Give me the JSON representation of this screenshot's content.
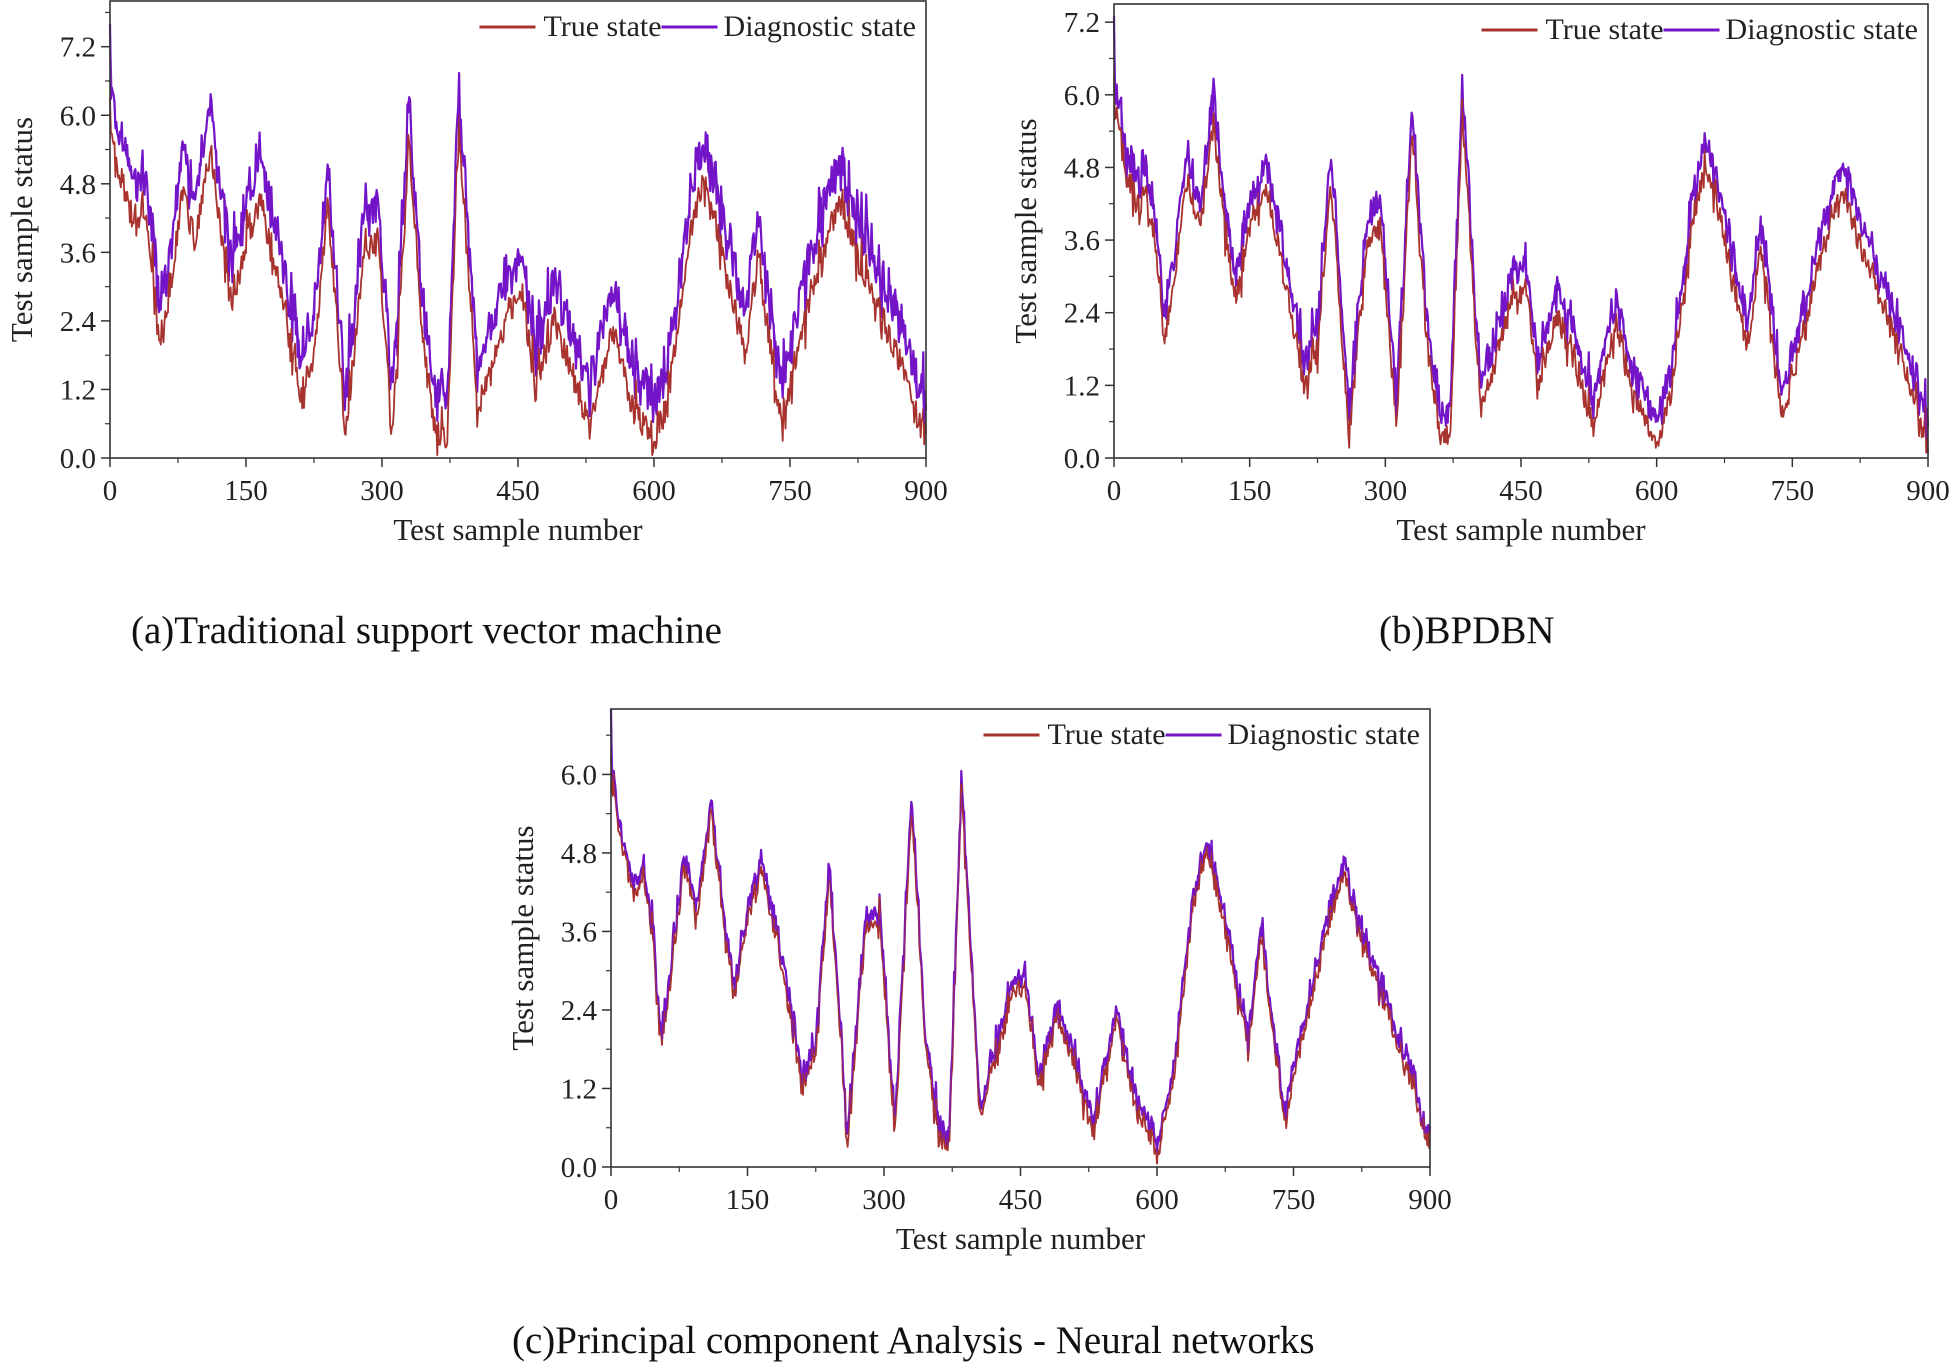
{
  "colors": {
    "true_state": "#a8322d",
    "diagnostic_state": "#7414c8",
    "axis": "#333333"
  },
  "chart_data": [
    {
      "id": "a",
      "type": "line",
      "title": "(a)Traditional support vector machine",
      "xlabel": "Test sample number",
      "ylabel": "Test sample status",
      "xlim": [
        0,
        900
      ],
      "ylim": [
        0,
        8.0
      ],
      "xticks": [
        "0",
        "150",
        "300",
        "450",
        "600",
        "750",
        "900"
      ],
      "yticks": [
        "0.0",
        "1.2",
        "2.4",
        "3.6",
        "4.8",
        "6.0",
        "7.2"
      ],
      "legend": {
        "position": "top-right",
        "entries": [
          "True state",
          "Diagnostic state"
        ]
      },
      "diagnostic_offset": 0.7,
      "noise_amplitude": 0.5
    },
    {
      "id": "b",
      "type": "line",
      "title": "(b)BPDBN",
      "xlabel": "Test sample number",
      "ylabel": "Test sample status",
      "xlim": [
        0,
        900
      ],
      "ylim": [
        0,
        7.5
      ],
      "xticks": [
        "0",
        "150",
        "300",
        "450",
        "600",
        "750",
        "900"
      ],
      "yticks": [
        "0.0",
        "1.2",
        "2.4",
        "3.6",
        "4.8",
        "6.0",
        "7.2"
      ],
      "legend": {
        "position": "top-right",
        "entries": [
          "True state",
          "Diagnostic state"
        ]
      },
      "diagnostic_offset": 0.4,
      "noise_amplitude": 0.4
    },
    {
      "id": "c",
      "type": "line",
      "title": "(c)Principal component Analysis - Neural networks",
      "xlabel": "Test sample number",
      "ylabel": "Test sample status",
      "xlim": [
        0,
        900
      ],
      "ylim": [
        0,
        7.0
      ],
      "xticks": [
        "0",
        "150",
        "300",
        "450",
        "600",
        "750",
        "900"
      ],
      "yticks": [
        "0.0",
        "1.2",
        "2.4",
        "3.6",
        "4.8",
        "6.0"
      ],
      "legend": {
        "position": "top-right",
        "entries": [
          "True state",
          "Diagnostic state"
        ]
      },
      "diagnostic_offset": 0.15,
      "noise_amplitude": 0.3
    }
  ],
  "true_state_trend": {
    "x": [
      0,
      10,
      25,
      35,
      45,
      55,
      65,
      80,
      95,
      110,
      125,
      135,
      150,
      165,
      180,
      195,
      210,
      225,
      240,
      260,
      280,
      295,
      312,
      330,
      345,
      360,
      372,
      385,
      405,
      420,
      440,
      455,
      470,
      490,
      510,
      530,
      555,
      575,
      600,
      615,
      640,
      655,
      670,
      700,
      715,
      740,
      760,
      785,
      805,
      825,
      850,
      875,
      900
    ],
    "y": [
      6.0,
      5.0,
      4.2,
      4.5,
      3.6,
      1.9,
      2.8,
      4.6,
      3.8,
      5.5,
      3.5,
      2.6,
      3.8,
      4.5,
      3.6,
      2.5,
      1.2,
      1.8,
      4.5,
      0.4,
      3.6,
      3.8,
      0.5,
      5.5,
      2.0,
      0.4,
      0.4,
      5.8,
      0.8,
      1.5,
      2.6,
      2.8,
      1.2,
      2.4,
      1.5,
      0.5,
      2.3,
      1.0,
      0.2,
      1.0,
      4.0,
      4.8,
      4.0,
      1.8,
      3.5,
      0.6,
      2.0,
      3.5,
      4.5,
      3.5,
      2.5,
      1.5,
      0.3
    ]
  }
}
